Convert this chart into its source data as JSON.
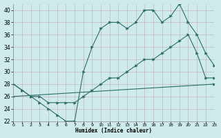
{
  "line1_x": [
    0,
    1,
    2,
    3,
    4,
    5,
    6,
    7,
    8,
    9,
    10,
    11,
    12,
    13,
    14,
    15,
    16,
    17,
    18,
    19,
    20,
    21,
    22,
    23
  ],
  "line1_y": [
    28,
    27,
    26,
    25,
    24,
    23,
    22,
    22,
    30,
    34,
    37,
    38,
    38,
    37,
    38,
    40,
    40,
    38,
    39,
    41,
    38,
    36,
    33,
    31
  ],
  "line2_x": [
    0,
    1,
    2,
    3,
    4,
    5,
    6,
    7,
    8,
    9,
    10,
    11,
    12,
    13,
    14,
    15,
    16,
    17,
    18,
    19,
    20,
    21,
    22,
    23
  ],
  "line2_y": [
    28,
    27,
    26,
    26,
    25,
    25,
    25,
    25,
    26,
    27,
    28,
    29,
    29,
    30,
    31,
    32,
    32,
    33,
    34,
    35,
    36,
    33,
    29,
    29
  ],
  "line3_x": [
    0,
    23
  ],
  "line3_y": [
    26,
    28
  ],
  "line_color": "#2a6e6a",
  "bg_color": "#ceeaea",
  "xlabel": "Humidex (Indice chaleur)",
  "xlim": [
    0,
    23
  ],
  "ylim": [
    22,
    41
  ],
  "yticks": [
    22,
    24,
    26,
    28,
    30,
    32,
    34,
    36,
    38,
    40
  ],
  "xticks": [
    0,
    1,
    2,
    3,
    4,
    5,
    6,
    7,
    8,
    9,
    10,
    11,
    12,
    13,
    14,
    15,
    16,
    17,
    18,
    19,
    20,
    21,
    22,
    23
  ]
}
